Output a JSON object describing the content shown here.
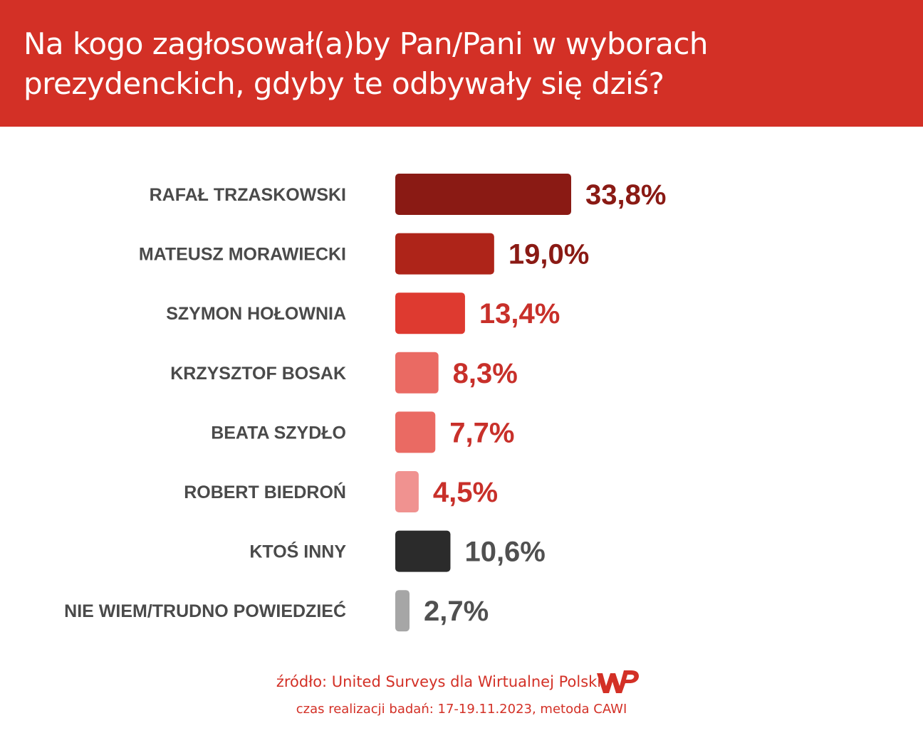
{
  "header": {
    "title": "Na kogo zagłosował(a)by Pan/Pani w wyborach prezydenckich, gdyby te odbywały się dziś?"
  },
  "chart_data": {
    "type": "bar",
    "orientation": "horizontal",
    "categories": [
      "RAFAŁ TRZASKOWSKI",
      "MATEUSZ MORAWIECKI",
      "SZYMON HOŁOWNIA",
      "KRZYSZTOF BOSAK",
      "BEATA SZYDŁO",
      "ROBERT BIEDROŃ",
      "KTOŚ INNY",
      "NIE WIEM/TRUDNO POWIEDZIEĆ"
    ],
    "values": [
      33.8,
      19.0,
      13.4,
      8.3,
      7.7,
      4.5,
      10.6,
      2.7
    ],
    "value_labels": [
      "33,8%",
      "19,0%",
      "13,4%",
      "8,3%",
      "7,7%",
      "4,5%",
      "10,6%",
      "2,7%"
    ],
    "bar_colors": [
      "#8a1a14",
      "#ae2419",
      "#de3a30",
      "#ea6a63",
      "#ea6a63",
      "#f09290",
      "#2b2b2b",
      "#a6a6a6"
    ],
    "label_colors": [
      "#8a1a14",
      "#8a1a14",
      "#c8302a",
      "#c8302a",
      "#c8302a",
      "#c8302a",
      "#505050",
      "#505050"
    ],
    "xlim": [
      0,
      33.8
    ],
    "grid": false,
    "legend": "none"
  },
  "footer": {
    "source": "źródło: United Surveys dla Wirtualnej Polski",
    "date": "czas realizacji badań: 17-19.11.2023, metoda CAWI"
  },
  "logo": {
    "name": "wp-logo",
    "color": "#d33026"
  }
}
